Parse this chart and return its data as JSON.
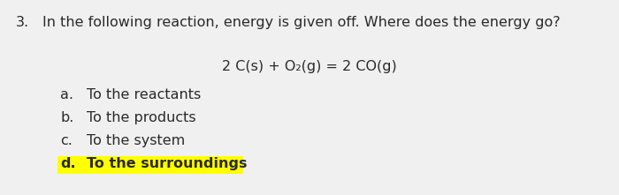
{
  "background_color": "#f0f0f0",
  "question_number": "3.",
  "question_text": "In the following reaction, energy is given off. Where does the energy go?",
  "equation": "2 C(s) + O₂(g) = 2 CO(g)",
  "options": [
    {
      "label": "a.",
      "text": "To the reactants",
      "highlighted": false,
      "bold": false
    },
    {
      "label": "b.",
      "text": "To the products",
      "highlighted": false,
      "bold": false
    },
    {
      "label": "c.",
      "text": "To the system",
      "highlighted": false,
      "bold": false
    },
    {
      "label": "d.",
      "text": "To the surroundings",
      "highlighted": true,
      "bold": true
    }
  ],
  "highlight_color": "#ffff00",
  "text_color": "#2a2a2a",
  "question_fontsize": 11.5,
  "option_fontsize": 11.5,
  "equation_fontsize": 11.5
}
